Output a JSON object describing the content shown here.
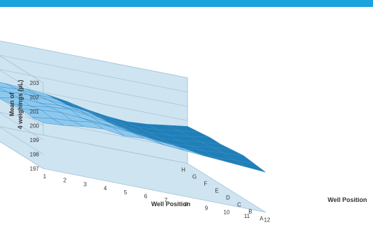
{
  "colors": {
    "top_bar": "#1aa3dc",
    "background": "#ffffff",
    "wall_fill": "#cfe4f1",
    "wall_stroke": "#9fc3d8",
    "grid": "#a9c8da",
    "surface_low": "#1f7fb8",
    "surface_high": "#8cc8ee",
    "mesh_stroke": "#3e8fc4",
    "text": "#333333"
  },
  "chart_data": {
    "type": "surface",
    "title": "",
    "zlabel_line1": "Mean of",
    "zlabel_line2": "4 weighings (µL)",
    "xlabel": "Well Position",
    "ylabel": "Well Position",
    "x": [
      1,
      2,
      3,
      4,
      5,
      6,
      7,
      8,
      9,
      10,
      11,
      12
    ],
    "y": [
      "A",
      "B",
      "C",
      "D",
      "E",
      "F",
      "G",
      "H"
    ],
    "z_ticks": [
      197,
      198,
      199,
      200,
      201,
      202,
      203
    ],
    "zlim": [
      197,
      203
    ],
    "color_band_threshold": 200,
    "rows": [
      {
        "row": "A",
        "values": [
          200.2,
          200.3,
          200.5,
          200.6,
          200.4,
          200.5,
          200.3,
          200.2,
          200.1,
          200.0,
          199.9,
          199.8
        ]
      },
      {
        "row": "B",
        "values": [
          200.1,
          200.3,
          200.4,
          200.6,
          200.5,
          200.4,
          200.2,
          200.1,
          199.9,
          199.8,
          199.9,
          199.9
        ]
      },
      {
        "row": "C",
        "values": [
          200.2,
          200.4,
          200.5,
          200.4,
          200.3,
          200.2,
          200.0,
          199.8,
          199.7,
          199.8,
          199.9,
          200.0
        ]
      },
      {
        "row": "D",
        "values": [
          200.1,
          200.2,
          200.4,
          200.5,
          200.3,
          200.1,
          199.8,
          199.6,
          199.5,
          199.6,
          199.8,
          199.9
        ]
      },
      {
        "row": "E",
        "values": [
          200.0,
          200.3,
          200.2,
          200.3,
          200.2,
          200.0,
          199.7,
          199.5,
          199.4,
          199.5,
          199.7,
          199.8
        ]
      },
      {
        "row": "F",
        "values": [
          200.1,
          200.2,
          200.3,
          200.2,
          200.1,
          199.9,
          199.6,
          199.4,
          199.3,
          199.4,
          199.6,
          199.8
        ]
      },
      {
        "row": "G",
        "values": [
          200.0,
          200.1,
          200.2,
          200.1,
          200.0,
          199.8,
          199.5,
          199.3,
          199.2,
          199.3,
          199.5,
          199.7
        ]
      },
      {
        "row": "H",
        "values": [
          200.0,
          200.1,
          200.1,
          200.0,
          199.9,
          199.7,
          199.4,
          199.2,
          199.1,
          199.2,
          199.4,
          199.6
        ]
      }
    ]
  }
}
